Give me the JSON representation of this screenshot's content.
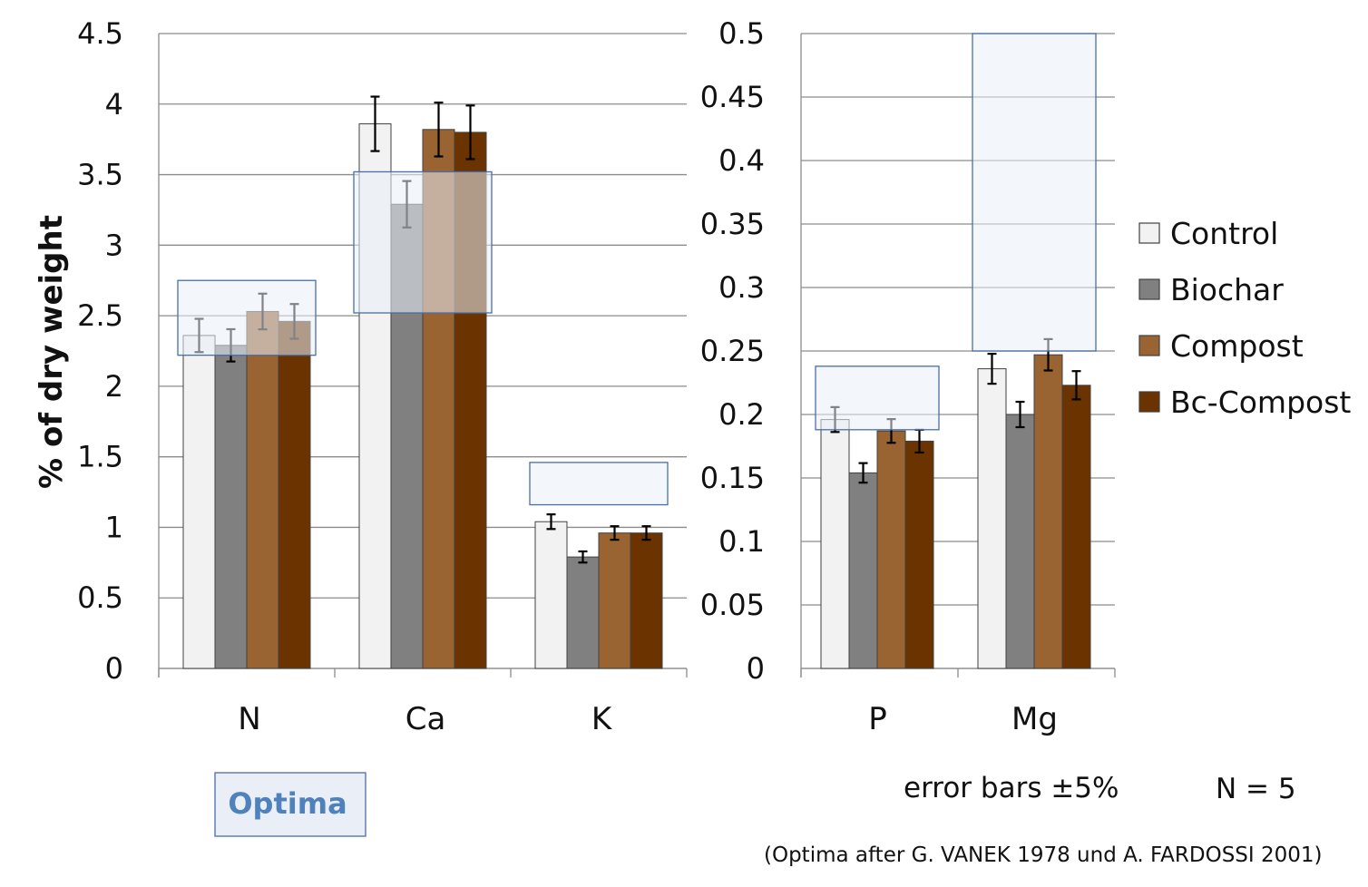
{
  "chart_data": [
    {
      "type": "bar",
      "ylabel": "% of dry weight",
      "ylim": [
        0,
        4.5
      ],
      "yticks": [
        "0",
        "0.5",
        "1",
        "1.5",
        "2",
        "2.5",
        "3",
        "3.5",
        "4",
        "4.5"
      ],
      "ytick_values": [
        0,
        0.5,
        1,
        1.5,
        2,
        2.5,
        3,
        3.5,
        4,
        4.5
      ],
      "grid": true,
      "categories": [
        "N",
        "Ca",
        "K"
      ],
      "series": [
        {
          "name": "Control",
          "values": [
            2.36,
            3.86,
            1.04
          ],
          "color": "#f2f2f2"
        },
        {
          "name": "Biochar",
          "values": [
            2.29,
            3.29,
            0.79
          ],
          "color": "#808080"
        },
        {
          "name": "Compost",
          "values": [
            2.53,
            3.82,
            0.96
          ],
          "color": "#9a6332"
        },
        {
          "name": "Bc-Compost",
          "values": [
            2.46,
            3.8,
            0.96
          ],
          "color": "#6b3300"
        }
      ],
      "error_bars_percent": 5,
      "optima_ranges": [
        [
          2.22,
          2.75
        ],
        [
          2.52,
          3.52
        ],
        [
          1.16,
          1.46
        ]
      ]
    },
    {
      "type": "bar",
      "ylim": [
        0,
        0.5
      ],
      "yticks": [
        "0",
        "0.05",
        "0.1",
        "0.15",
        "0.2",
        "0.25",
        "0.3",
        "0.35",
        "0.4",
        "0.45",
        "0.5"
      ],
      "ytick_values": [
        0,
        0.05,
        0.1,
        0.15,
        0.2,
        0.25,
        0.3,
        0.35,
        0.4,
        0.45,
        0.5
      ],
      "grid": true,
      "categories": [
        "P",
        "Mg"
      ],
      "series": [
        {
          "name": "Control",
          "values": [
            0.196,
            0.236
          ],
          "color": "#f2f2f2"
        },
        {
          "name": "Biochar",
          "values": [
            0.154,
            0.2
          ],
          "color": "#808080"
        },
        {
          "name": "Compost",
          "values": [
            0.187,
            0.247
          ],
          "color": "#9a6332"
        },
        {
          "name": "Bc-Compost",
          "values": [
            0.179,
            0.223
          ],
          "color": "#6b3300"
        }
      ],
      "error_bars_percent": 5,
      "optima_ranges": [
        [
          0.188,
          0.238
        ],
        [
          0.25,
          0.5
        ]
      ]
    }
  ],
  "legend": {
    "placement": "right",
    "items": [
      "Control",
      "Biochar",
      "Compost",
      "Bc-Compost"
    ]
  },
  "optima_label": "Optima",
  "error_note": "error bars ±5%",
  "n_note": "N = 5",
  "source_note": "(Optima after G. VANEK 1978 und A. FARDOSSI 2001)",
  "colors": {
    "optima_fill": "#e9eef7",
    "optima_stroke": "#4a6ea9",
    "grid": "#8c8c8c",
    "optima_text": "#4f81bd"
  }
}
